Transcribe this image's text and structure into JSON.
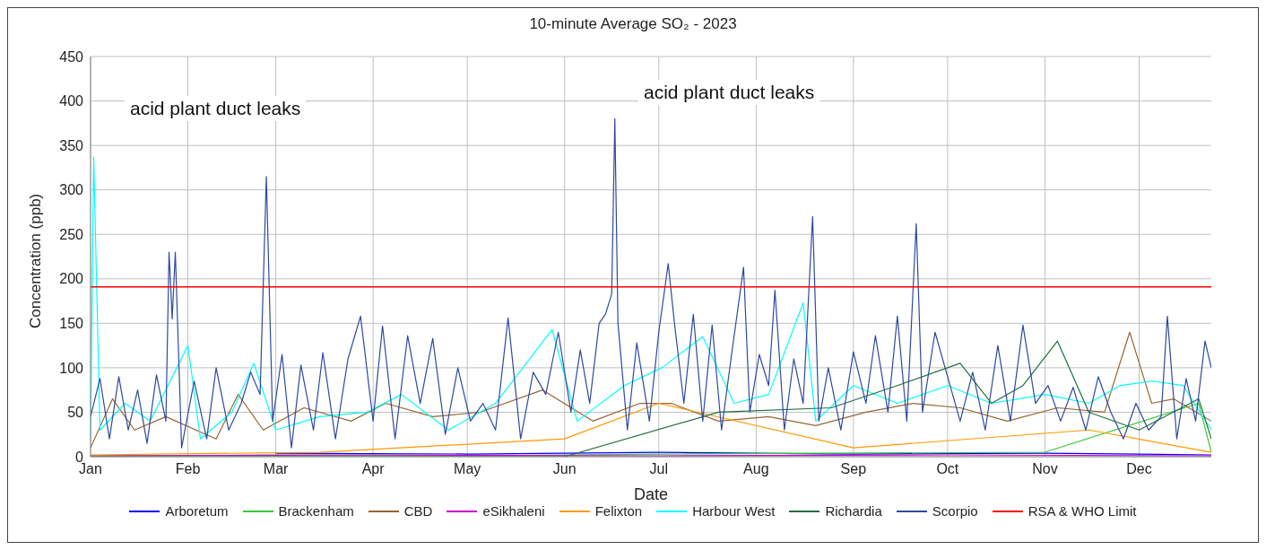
{
  "chart_data": {
    "type": "line",
    "title": "10-minute Average SO₂ - 2023",
    "xlabel": "Date",
    "ylabel": "Concentration (ppb)",
    "annotations": [
      "acid plant duct leaks",
      "acid plant duct leaks"
    ],
    "xlim": [
      "2023-01-01",
      "2023-12-24"
    ],
    "xticks": [
      {
        "value": "2023-01-01",
        "label": "Jan"
      },
      {
        "value": "2023-02-01",
        "label": "Feb"
      },
      {
        "value": "2023-03-01",
        "label": "Mar"
      },
      {
        "value": "2023-04-01",
        "label": "Apr"
      },
      {
        "value": "2023-05-01",
        "label": "May"
      },
      {
        "value": "2023-06-01",
        "label": "Jun"
      },
      {
        "value": "2023-07-01",
        "label": "Jul"
      },
      {
        "value": "2023-08-01",
        "label": "Aug"
      },
      {
        "value": "2023-09-01",
        "label": "Sep"
      },
      {
        "value": "2023-10-01",
        "label": "Oct"
      },
      {
        "value": "2023-11-01",
        "label": "Nov"
      },
      {
        "value": "2023-12-01",
        "label": "Dec"
      }
    ],
    "ylim": [
      0,
      450
    ],
    "yticks": [
      0,
      50,
      100,
      150,
      200,
      250,
      300,
      350,
      400,
      450
    ],
    "grid": true,
    "legend": "bottom",
    "marker": "none",
    "line_style": "solid",
    "ref_lines": [
      {
        "axis": "y",
        "value": 191,
        "label": "RSA & WHO Limit",
        "color": "#ff0000"
      }
    ],
    "series": [
      {
        "name": "Arboretum",
        "color": "#0000ff",
        "x": [
          "2023-03-01",
          "2023-05-01",
          "2023-07-01",
          "2023-09-01",
          "2023-11-01",
          "2023-12-24"
        ],
        "values": [
          4,
          3,
          5,
          3,
          4,
          2
        ]
      },
      {
        "name": "Brackenham",
        "color": "#33cc33",
        "x": [
          "2023-01-01",
          "2023-03-01",
          "2023-05-01",
          "2023-07-01",
          "2023-11-01",
          "2023-12-20",
          "2023-12-24"
        ],
        "values": [
          1,
          2,
          1,
          3,
          5,
          60,
          5
        ]
      },
      {
        "name": "CBD",
        "color": "#996633",
        "x": [
          "2023-01-01",
          "2023-01-08",
          "2023-01-15",
          "2023-01-25",
          "2023-02-10",
          "2023-02-17",
          "2023-02-25",
          "2023-03-10",
          "2023-03-25",
          "2023-04-05",
          "2023-04-20",
          "2023-05-05",
          "2023-05-25",
          "2023-06-10",
          "2023-06-25",
          "2023-07-05",
          "2023-07-20",
          "2023-08-05",
          "2023-08-20",
          "2023-09-05",
          "2023-09-20",
          "2023-10-05",
          "2023-10-20",
          "2023-11-05",
          "2023-11-20",
          "2023-11-28",
          "2023-12-05",
          "2023-12-12",
          "2023-12-24"
        ],
        "values": [
          10,
          65,
          30,
          45,
          20,
          70,
          30,
          55,
          40,
          60,
          45,
          50,
          75,
          40,
          60,
          60,
          40,
          45,
          35,
          50,
          60,
          55,
          40,
          55,
          50,
          140,
          60,
          65,
          40
        ]
      },
      {
        "name": "eSikhaleni",
        "color": "#cc00cc",
        "x": [
          "2023-01-01",
          "2023-04-01",
          "2023-07-01",
          "2023-10-01",
          "2023-12-24"
        ],
        "values": [
          1,
          2,
          1,
          2,
          1
        ]
      },
      {
        "name": "Felixton",
        "color": "#ff9900",
        "x": [
          "2023-01-01",
          "2023-03-15",
          "2023-06-01",
          "2023-07-01",
          "2023-09-01",
          "2023-11-15",
          "2023-12-24"
        ],
        "values": [
          2,
          5,
          20,
          60,
          10,
          30,
          5
        ]
      },
      {
        "name": "Harbour West",
        "color": "#00ffff",
        "x": [
          "2023-01-01",
          "2023-01-02",
          "2023-01-04",
          "2023-01-12",
          "2023-01-20",
          "2023-02-01",
          "2023-02-05",
          "2023-02-15",
          "2023-02-22",
          "2023-03-01",
          "2023-03-15",
          "2023-03-30",
          "2023-04-10",
          "2023-04-25",
          "2023-05-10",
          "2023-05-28",
          "2023-06-05",
          "2023-06-20",
          "2023-07-02",
          "2023-07-15",
          "2023-07-25",
          "2023-08-05",
          "2023-08-16",
          "2023-08-20",
          "2023-09-01",
          "2023-09-15",
          "2023-10-01",
          "2023-10-15",
          "2023-11-01",
          "2023-11-15",
          "2023-11-25",
          "2023-12-05",
          "2023-12-15",
          "2023-12-24"
        ],
        "values": [
          20,
          337,
          30,
          60,
          40,
          125,
          20,
          50,
          105,
          30,
          45,
          50,
          70,
          30,
          60,
          143,
          40,
          80,
          100,
          135,
          60,
          70,
          173,
          40,
          80,
          60,
          80,
          60,
          70,
          60,
          80,
          85,
          80,
          30
        ]
      },
      {
        "name": "Richardia",
        "color": "#207040",
        "x": [
          "2023-01-01",
          "2023-06-01",
          "2023-07-20",
          "2023-08-25",
          "2023-09-15",
          "2023-10-05",
          "2023-10-15",
          "2023-10-25",
          "2023-11-05",
          "2023-11-15",
          "2023-12-01",
          "2023-12-20",
          "2023-12-24"
        ],
        "values": [
          0,
          0,
          50,
          55,
          80,
          105,
          60,
          80,
          130,
          50,
          30,
          65,
          20
        ]
      },
      {
        "name": "Scorpio",
        "color": "#2e4a9e",
        "x": [
          "2023-01-01",
          "2023-01-04",
          "2023-01-07",
          "2023-01-10",
          "2023-01-13",
          "2023-01-16",
          "2023-01-19",
          "2023-01-22",
          "2023-01-25",
          "2023-01-26",
          "2023-01-27",
          "2023-01-28",
          "2023-01-30",
          "2023-02-03",
          "2023-02-07",
          "2023-02-10",
          "2023-02-14",
          "2023-02-18",
          "2023-02-21",
          "2023-02-24",
          "2023-02-26",
          "2023-02-28",
          "2023-03-03",
          "2023-03-06",
          "2023-03-09",
          "2023-03-13",
          "2023-03-16",
          "2023-03-20",
          "2023-03-24",
          "2023-03-28",
          "2023-04-01",
          "2023-04-04",
          "2023-04-08",
          "2023-04-12",
          "2023-04-16",
          "2023-04-20",
          "2023-04-24",
          "2023-04-28",
          "2023-05-02",
          "2023-05-06",
          "2023-05-10",
          "2023-05-14",
          "2023-05-18",
          "2023-05-22",
          "2023-05-26",
          "2023-05-30",
          "2023-06-03",
          "2023-06-06",
          "2023-06-09",
          "2023-06-12",
          "2023-06-14",
          "2023-06-16",
          "2023-06-17",
          "2023-06-18",
          "2023-06-21",
          "2023-06-24",
          "2023-06-28",
          "2023-07-01",
          "2023-07-04",
          "2023-07-06",
          "2023-07-09",
          "2023-07-12",
          "2023-07-15",
          "2023-07-18",
          "2023-07-21",
          "2023-07-24",
          "2023-07-28",
          "2023-07-30",
          "2023-08-02",
          "2023-08-05",
          "2023-08-07",
          "2023-08-10",
          "2023-08-13",
          "2023-08-16",
          "2023-08-19",
          "2023-08-21",
          "2023-08-24",
          "2023-08-28",
          "2023-09-01",
          "2023-09-05",
          "2023-09-08",
          "2023-09-12",
          "2023-09-15",
          "2023-09-18",
          "2023-09-21",
          "2023-09-23",
          "2023-09-27",
          "2023-10-01",
          "2023-10-05",
          "2023-10-09",
          "2023-10-13",
          "2023-10-17",
          "2023-10-21",
          "2023-10-25",
          "2023-10-29",
          "2023-11-02",
          "2023-11-06",
          "2023-11-10",
          "2023-11-14",
          "2023-11-18",
          "2023-11-22",
          "2023-11-26",
          "2023-11-30",
          "2023-12-04",
          "2023-12-08",
          "2023-12-10",
          "2023-12-13",
          "2023-12-16",
          "2023-12-19",
          "2023-12-22",
          "2023-12-24"
        ],
        "values": [
          45,
          88,
          20,
          90,
          30,
          75,
          15,
          92,
          40,
          230,
          155,
          230,
          10,
          85,
          20,
          100,
          30,
          60,
          95,
          70,
          315,
          40,
          115,
          10,
          103,
          30,
          117,
          20,
          110,
          158,
          40,
          147,
          20,
          136,
          60,
          133,
          25,
          100,
          40,
          60,
          30,
          156,
          20,
          95,
          70,
          140,
          50,
          120,
          60,
          150,
          160,
          183,
          380,
          150,
          30,
          128,
          40,
          140,
          217,
          150,
          60,
          160,
          40,
          148,
          30,
          110,
          213,
          50,
          115,
          80,
          187,
          30,
          110,
          60,
          270,
          40,
          100,
          30,
          118,
          60,
          136,
          50,
          158,
          40,
          262,
          50,
          140,
          90,
          40,
          95,
          30,
          125,
          40,
          148,
          60,
          80,
          40,
          78,
          30,
          90,
          50,
          20,
          60,
          30,
          45,
          158,
          20,
          88,
          40,
          130,
          100
        ]
      }
    ]
  }
}
